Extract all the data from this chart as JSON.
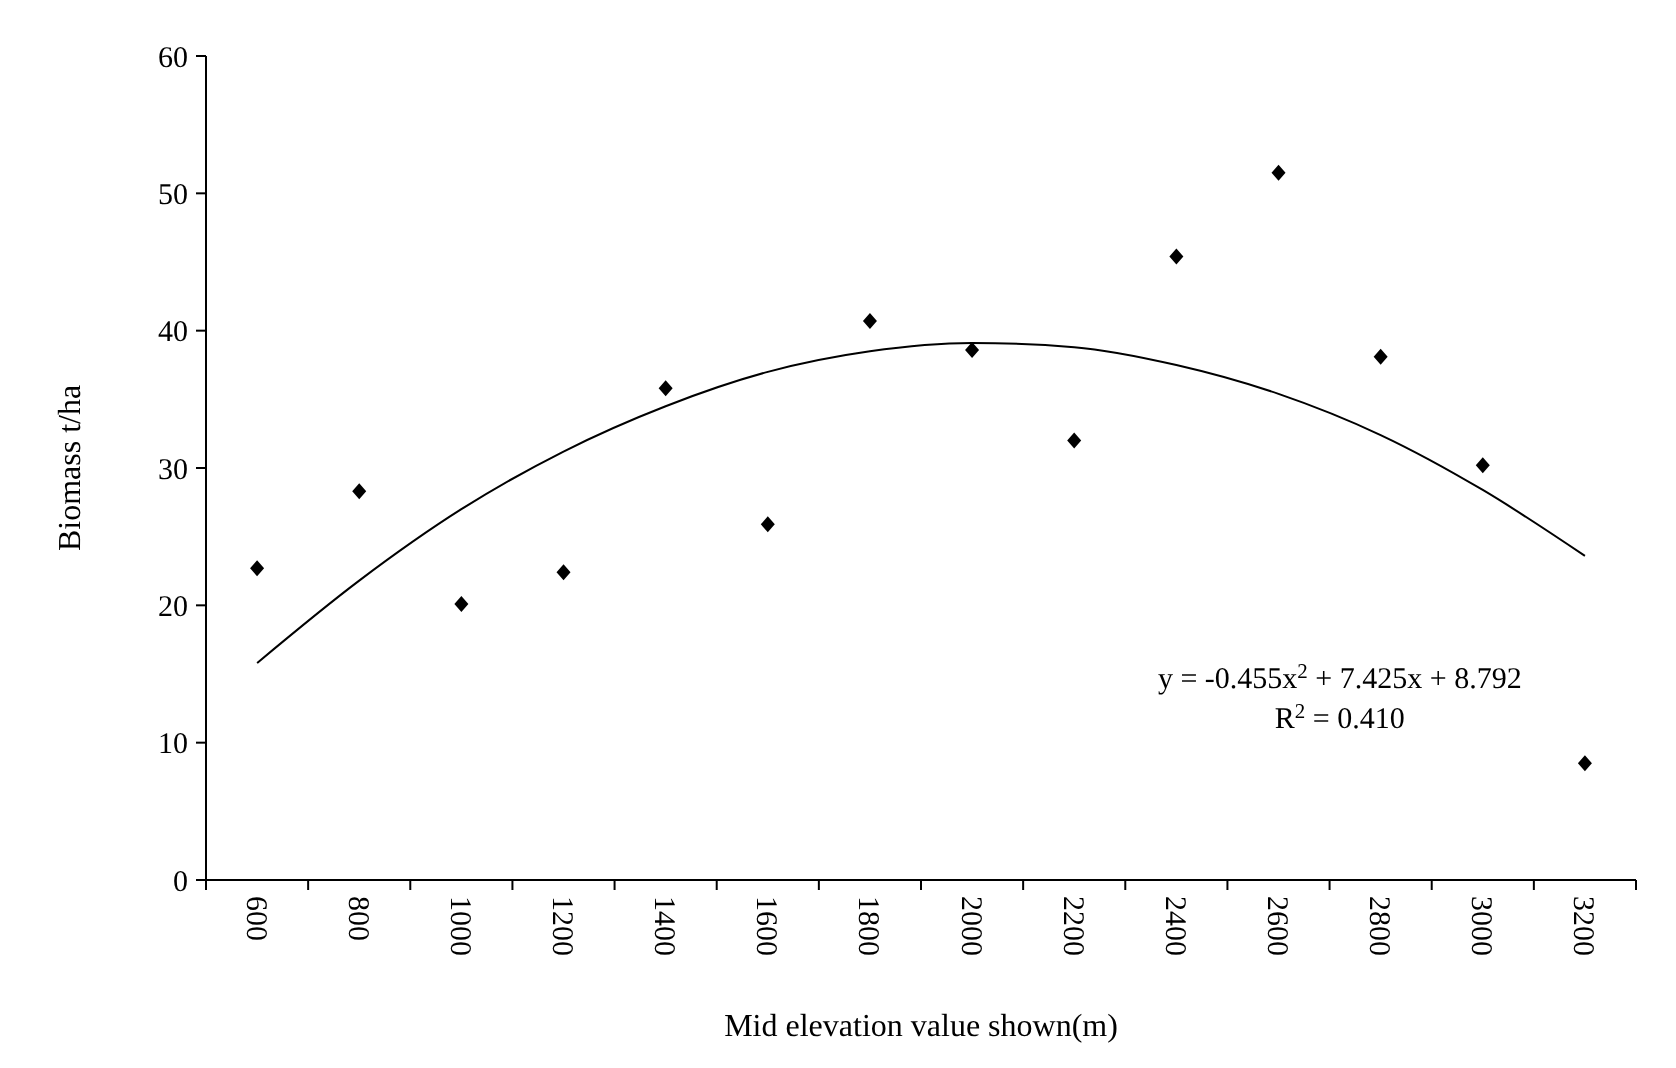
{
  "chart_data": {
    "type": "scatter",
    "xlabel": "Mid elevation value shown(m)",
    "ylabel": "Biomass t/ha",
    "categories": [
      "600",
      "800",
      "1000",
      "1200",
      "1400",
      "1600",
      "1800",
      "2000",
      "2200",
      "2400",
      "2600",
      "2800",
      "3000",
      "3200"
    ],
    "series": [
      {
        "color": "#000000",
        "marker": "diamond",
        "values": [
          22.7,
          28.3,
          20.1,
          22.4,
          35.8,
          25.9,
          40.7,
          38.6,
          32.0,
          45.4,
          51.5,
          38.1,
          30.2,
          8.5
        ]
      },
      {
        "type": "line",
        "color": "#000000",
        "marker": "none",
        "line_style": "solid",
        "values": [
          15.8,
          21.8,
          27.0,
          31.2,
          34.5,
          37.0,
          38.5,
          39.1,
          38.8,
          37.5,
          35.4,
          32.4,
          28.4,
          23.6
        ]
      }
    ],
    "ylim": [
      0,
      60
    ],
    "yticks": [
      0,
      10,
      20,
      30,
      40,
      50,
      60
    ],
    "grid": false,
    "annotations": [
      "y = -0.455x$^{2}$ + 7.425x + 8.792",
      "R$^{2}$ = 0.410"
    ]
  }
}
